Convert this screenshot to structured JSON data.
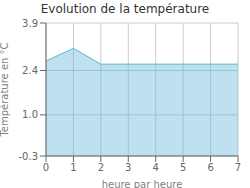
{
  "chart_data": {
    "type": "area",
    "title": "Evolution de la température",
    "xlabel": "heure par heure",
    "ylabel": "Température en °C",
    "x": [
      0,
      1,
      2,
      3,
      4,
      5,
      6,
      7
    ],
    "values": [
      2.7,
      3.1,
      2.6,
      2.6,
      2.6,
      2.6,
      2.6,
      2.6
    ],
    "xlim": [
      0,
      7
    ],
    "ylim": [
      -0.3,
      3.9
    ],
    "xticks": [
      0,
      1,
      2,
      3,
      4,
      5,
      6,
      7
    ],
    "yticks": [
      -0.3,
      {
        "value": 1,
        "label": "1.0"
      },
      2.4,
      3.9
    ],
    "color": "#5ab4d6",
    "grid": true
  }
}
